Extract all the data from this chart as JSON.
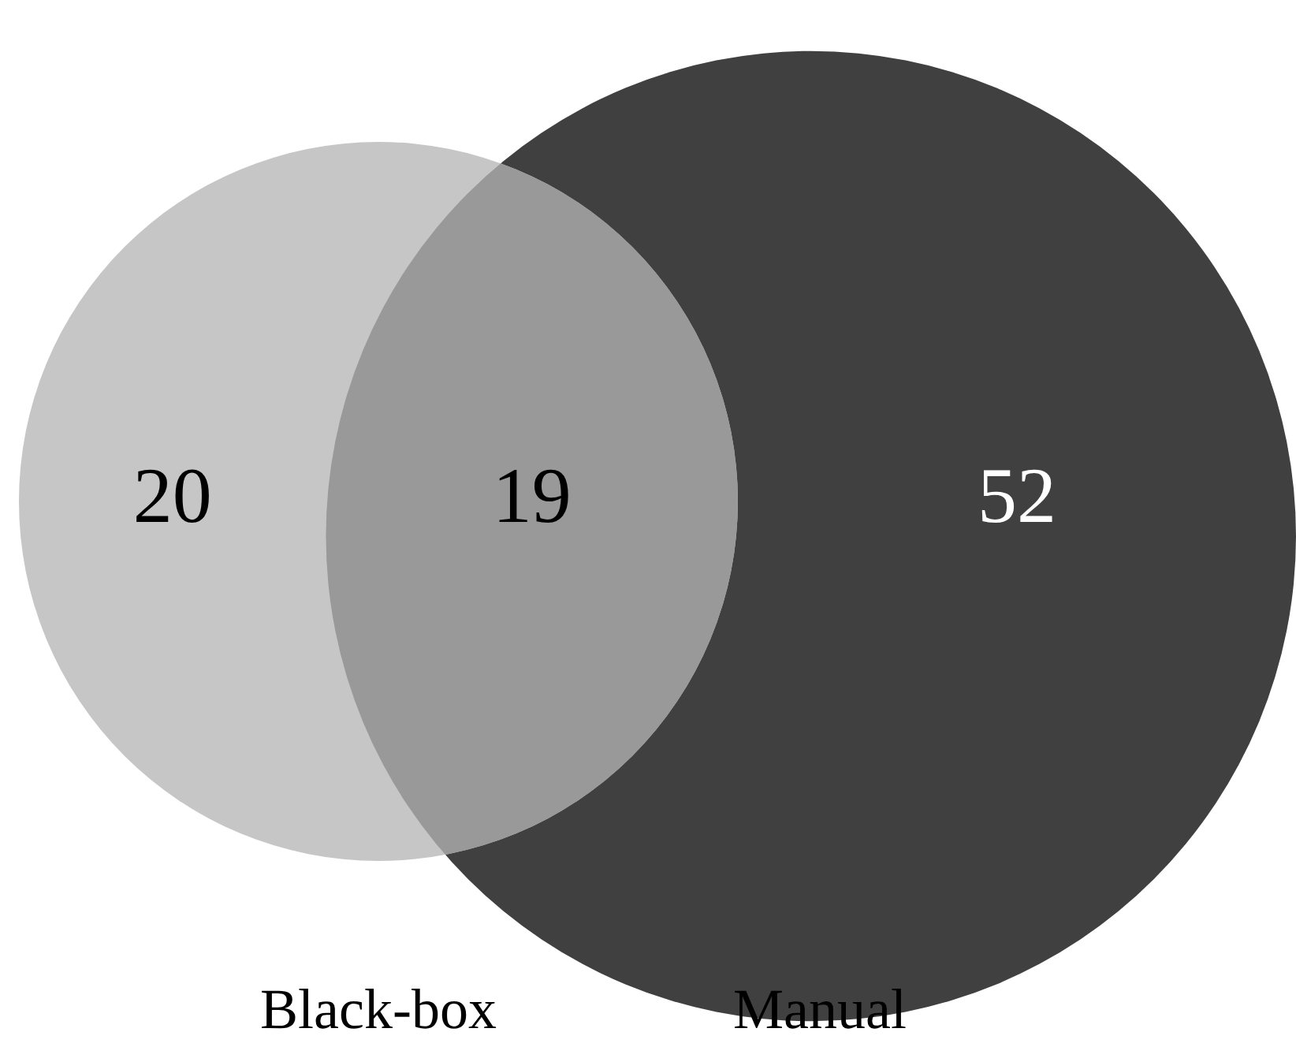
{
  "chart_data": {
    "type": "other",
    "categories": [
      "Black-box",
      null,
      "Manual"
    ],
    "values": [
      20,
      19,
      52
    ],
    "colors": [
      "#c6c6c6",
      "#999999",
      "#404040"
    ],
    "data_labels": true
  }
}
